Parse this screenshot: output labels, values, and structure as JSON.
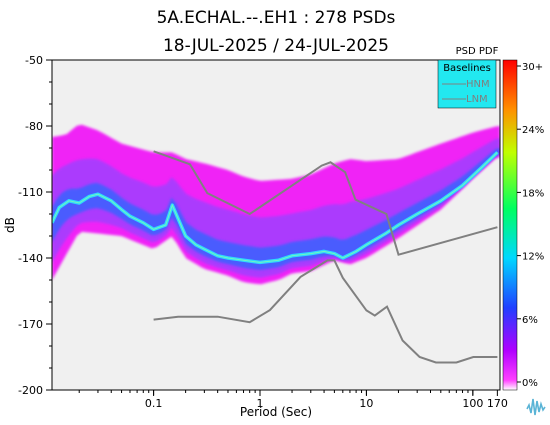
{
  "chart_data": {
    "type": "heatmap",
    "title_line1": "5A.ECHAL.--.EH1 : 278 PSDs",
    "title_line2": "18-JUL-2025 / 24-JUL-2025",
    "xlabel": "Period (Sec)",
    "ylabel": "dB",
    "x_scale": "log",
    "xlim": [
      0.0111,
      180
    ],
    "ylim": [
      -200,
      -50
    ],
    "x_ticks": [
      {
        "value": 0.1,
        "label": "0.1"
      },
      {
        "value": 1,
        "label": "1"
      },
      {
        "value": 10,
        "label": "10"
      },
      {
        "value": 100,
        "label": "100"
      },
      {
        "value": 170,
        "label": "170"
      }
    ],
    "y_ticks": [
      {
        "value": -50,
        "label": "-50"
      },
      {
        "value": -80,
        "label": "-80"
      },
      {
        "value": -110,
        "label": "-110"
      },
      {
        "value": -140,
        "label": "-140"
      },
      {
        "value": -170,
        "label": "-170"
      },
      {
        "value": -200,
        "label": "-200"
      }
    ],
    "colorbar": {
      "label": "PSD PDF",
      "ticks": [
        "30+",
        "24%",
        "18%",
        "12%",
        "6%",
        "0%"
      ]
    },
    "legend": {
      "title": "Baselines",
      "items": [
        "HNM",
        "LNM"
      ]
    },
    "pdf_mode": {
      "x": [
        0.0111,
        0.013,
        0.016,
        0.02,
        0.025,
        0.03,
        0.04,
        0.05,
        0.06,
        0.08,
        0.1,
        0.13,
        0.15,
        0.2,
        0.25,
        0.3,
        0.4,
        0.5,
        0.7,
        1,
        1.5,
        2,
        3,
        4,
        5,
        6,
        8,
        10,
        15,
        20,
        30,
        50,
        80,
        120,
        170
      ],
      "y": [
        -124,
        -117,
        -114,
        -115,
        -112,
        -111,
        -114,
        -118,
        -121,
        -124,
        -127,
        -125,
        -116,
        -130,
        -134,
        -136,
        -139,
        -140,
        -141,
        -142,
        -141,
        -139,
        -138,
        -137,
        -138,
        -140,
        -137,
        -134,
        -129,
        -125,
        -120,
        -114,
        -107,
        -99,
        -92
      ]
    },
    "pdf_lower": {
      "x": [
        0.0111,
        0.02,
        0.05,
        0.1,
        0.15,
        0.2,
        0.3,
        0.5,
        0.7,
        1,
        1.5,
        2,
        3,
        5,
        7,
        10,
        20,
        50,
        100,
        170
      ],
      "y": [
        -150,
        -128,
        -130,
        -136,
        -130,
        -140,
        -145,
        -148,
        -151,
        -152,
        -150,
        -147,
        -146,
        -141,
        -143,
        -140,
        -131,
        -118,
        -104,
        -94
      ]
    },
    "pdf_upper": {
      "x": [
        0.0111,
        0.015,
        0.02,
        0.03,
        0.05,
        0.1,
        0.15,
        0.2,
        0.3,
        0.5,
        0.7,
        1,
        2,
        3,
        5,
        7,
        10,
        20,
        50,
        100,
        170
      ],
      "y": [
        -85,
        -84,
        -79,
        -82,
        -88,
        -92,
        -92,
        -95,
        -97,
        -100,
        -103,
        -105,
        -104,
        -102,
        -97,
        -95,
        -96,
        -95,
        -88,
        -83,
        -80
      ]
    },
    "nhnm": {
      "x": [
        0.1,
        0.22,
        0.32,
        0.8,
        3.8,
        4.6,
        6.3,
        7.9,
        15.4,
        20,
        170
      ],
      "y": [
        -91.5,
        -97.4,
        -110.5,
        -120,
        -98,
        -96.5,
        -101,
        -113.5,
        -120,
        -138.5,
        -126
      ]
    },
    "nlnm": {
      "x": [
        0.1,
        0.17,
        0.4,
        0.8,
        1.24,
        2.4,
        4.3,
        5,
        6,
        10,
        12,
        15.6,
        21.9,
        31.6,
        45,
        70,
        101,
        154,
        170
      ],
      "y": [
        -168,
        -166.7,
        -166.7,
        -169.2,
        -163.7,
        -148.6,
        -141.1,
        -141.1,
        -149,
        -163.8,
        -166.2,
        -162.1,
        -177.5,
        -185,
        -187.5,
        -187.5,
        -185,
        -185,
        -185
      ]
    }
  },
  "colors": {
    "baseline_line": "#808080",
    "legend_bg": "#22e8f0",
    "plot_bg": "#f0f0f0",
    "pdf_outer": "#f000f8",
    "pdf_mid": "#a040ff",
    "pdf_core": "#30d8ff"
  },
  "logo_icon": "waveform-logo-icon"
}
